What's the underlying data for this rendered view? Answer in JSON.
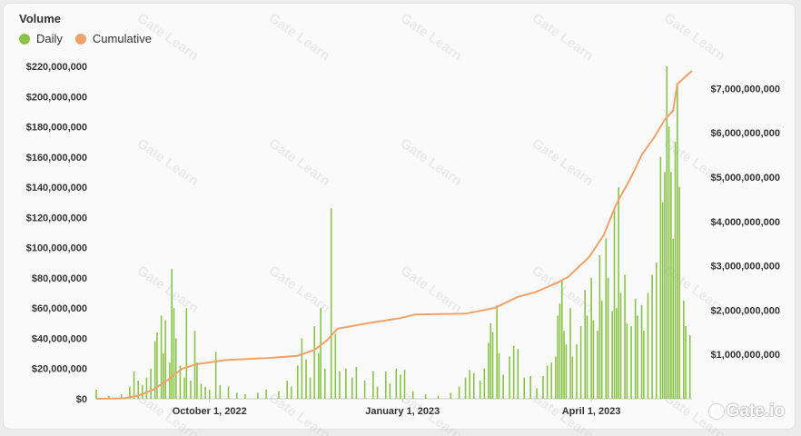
{
  "chart_data": {
    "type": "bar+line",
    "title": "Volume",
    "legend_position": "top-left",
    "grid": "none",
    "x_range": [
      "2022-08-08",
      "2023-05-19"
    ],
    "x_ticks": [
      "October 1, 2022",
      "January 1, 2023",
      "April 1, 2023"
    ],
    "left_axis": {
      "ylim": [
        0,
        220000000
      ],
      "ticks": [
        "$0",
        "$20,000,000",
        "$40,000,000",
        "$60,000,000",
        "$80,000,000",
        "$100,000,000",
        "$120,000,000",
        "$140,000,000",
        "$160,000,000",
        "$180,000,000",
        "$200,000,000",
        "$220,000,000"
      ]
    },
    "right_axis": {
      "ylim": [
        0,
        7500000000
      ],
      "ticks": [
        "$1,000,000,000",
        "$2,000,000,000",
        "$3,000,000,000",
        "$4,000,000,000",
        "$5,000,000,000",
        "$6,000,000,000",
        "$7,000,000,000"
      ]
    },
    "series": [
      {
        "name": "Daily",
        "type": "bar",
        "axis": "left",
        "color": "#8bc34a",
        "points": [
          [
            "2022-08-08",
            6000000
          ],
          [
            "2022-08-14",
            2000000
          ],
          [
            "2022-08-20",
            3000000
          ],
          [
            "2022-08-24",
            8000000
          ],
          [
            "2022-08-26",
            18000000
          ],
          [
            "2022-08-28",
            12000000
          ],
          [
            "2022-08-30",
            9000000
          ],
          [
            "2022-09-01",
            14000000
          ],
          [
            "2022-09-03",
            20000000
          ],
          [
            "2022-09-05",
            38000000
          ],
          [
            "2022-09-06",
            44000000
          ],
          [
            "2022-09-08",
            55000000
          ],
          [
            "2022-09-09",
            30000000
          ],
          [
            "2022-09-10",
            52000000
          ],
          [
            "2022-09-12",
            24000000
          ],
          [
            "2022-09-13",
            86000000
          ],
          [
            "2022-09-14",
            60000000
          ],
          [
            "2022-09-15",
            40000000
          ],
          [
            "2022-09-17",
            22000000
          ],
          [
            "2022-09-19",
            14000000
          ],
          [
            "2022-09-20",
            60000000
          ],
          [
            "2022-09-22",
            12000000
          ],
          [
            "2022-09-24",
            45000000
          ],
          [
            "2022-09-25",
            24000000
          ],
          [
            "2022-09-27",
            10000000
          ],
          [
            "2022-09-29",
            8000000
          ],
          [
            "2022-10-01",
            6000000
          ],
          [
            "2022-10-04",
            31000000
          ],
          [
            "2022-10-06",
            9000000
          ],
          [
            "2022-10-10",
            8000000
          ],
          [
            "2022-10-14",
            4000000
          ],
          [
            "2022-10-18",
            3000000
          ],
          [
            "2022-10-24",
            4000000
          ],
          [
            "2022-10-28",
            6000000
          ],
          [
            "2022-11-03",
            5000000
          ],
          [
            "2022-11-07",
            12000000
          ],
          [
            "2022-11-09",
            8000000
          ],
          [
            "2022-11-12",
            22000000
          ],
          [
            "2022-11-14",
            40000000
          ],
          [
            "2022-11-16",
            26000000
          ],
          [
            "2022-11-18",
            14000000
          ],
          [
            "2022-11-20",
            48000000
          ],
          [
            "2022-11-22",
            30000000
          ],
          [
            "2022-11-23",
            60000000
          ],
          [
            "2022-11-25",
            20000000
          ],
          [
            "2022-11-28",
            126000000
          ],
          [
            "2022-11-30",
            43000000
          ],
          [
            "2022-12-02",
            18000000
          ],
          [
            "2022-12-05",
            20000000
          ],
          [
            "2022-12-08",
            14000000
          ],
          [
            "2022-12-10",
            21000000
          ],
          [
            "2022-12-14",
            12000000
          ],
          [
            "2022-12-18",
            18000000
          ],
          [
            "2022-12-20",
            8000000
          ],
          [
            "2022-12-24",
            18000000
          ],
          [
            "2022-12-26",
            10000000
          ],
          [
            "2022-12-29",
            20000000
          ],
          [
            "2022-12-31",
            16000000
          ],
          [
            "2023-01-02",
            19000000
          ],
          [
            "2023-01-06",
            5000000
          ],
          [
            "2023-01-12",
            3000000
          ],
          [
            "2023-01-18",
            2000000
          ],
          [
            "2023-01-24",
            4000000
          ],
          [
            "2023-01-28",
            8000000
          ],
          [
            "2023-01-31",
            14000000
          ],
          [
            "2023-02-02",
            19000000
          ],
          [
            "2023-02-04",
            17000000
          ],
          [
            "2023-02-07",
            12000000
          ],
          [
            "2023-02-09",
            20000000
          ],
          [
            "2023-02-11",
            37000000
          ],
          [
            "2023-02-12",
            50000000
          ],
          [
            "2023-02-13",
            44000000
          ],
          [
            "2023-02-15",
            62000000
          ],
          [
            "2023-02-16",
            30000000
          ],
          [
            "2023-02-18",
            16000000
          ],
          [
            "2023-02-21",
            28000000
          ],
          [
            "2023-02-23",
            35000000
          ],
          [
            "2023-02-25",
            33000000
          ],
          [
            "2023-02-28",
            14000000
          ],
          [
            "2023-03-03",
            15000000
          ],
          [
            "2023-03-06",
            7000000
          ],
          [
            "2023-03-09",
            15000000
          ],
          [
            "2023-03-11",
            22000000
          ],
          [
            "2023-03-13",
            24000000
          ],
          [
            "2023-03-15",
            28000000
          ],
          [
            "2023-03-16",
            55000000
          ],
          [
            "2023-03-17",
            63000000
          ],
          [
            "2023-03-18",
            78000000
          ],
          [
            "2023-03-19",
            45000000
          ],
          [
            "2023-03-20",
            36000000
          ],
          [
            "2023-03-22",
            60000000
          ],
          [
            "2023-03-23",
            28000000
          ],
          [
            "2023-03-25",
            36000000
          ],
          [
            "2023-03-27",
            48000000
          ],
          [
            "2023-03-29",
            72000000
          ],
          [
            "2023-03-30",
            55000000
          ],
          [
            "2023-04-01",
            80000000
          ],
          [
            "2023-04-02",
            52000000
          ],
          [
            "2023-04-04",
            45000000
          ],
          [
            "2023-04-05",
            95000000
          ],
          [
            "2023-04-06",
            65000000
          ],
          [
            "2023-04-08",
            106000000
          ],
          [
            "2023-04-09",
            80000000
          ],
          [
            "2023-04-11",
            58000000
          ],
          [
            "2023-04-12",
            125000000
          ],
          [
            "2023-04-13",
            60000000
          ],
          [
            "2023-04-14",
            140000000
          ],
          [
            "2023-04-15",
            70000000
          ],
          [
            "2023-04-17",
            82000000
          ],
          [
            "2023-04-18",
            50000000
          ],
          [
            "2023-04-20",
            48000000
          ],
          [
            "2023-04-22",
            66000000
          ],
          [
            "2023-04-23",
            55000000
          ],
          [
            "2023-04-25",
            62000000
          ],
          [
            "2023-04-26",
            45000000
          ],
          [
            "2023-04-28",
            70000000
          ],
          [
            "2023-04-30",
            82000000
          ],
          [
            "2023-05-02",
            90000000
          ],
          [
            "2023-05-04",
            160000000
          ],
          [
            "2023-05-05",
            130000000
          ],
          [
            "2023-05-06",
            150000000
          ],
          [
            "2023-05-07",
            220000000
          ],
          [
            "2023-05-08",
            180000000
          ],
          [
            "2023-05-09",
            150000000
          ],
          [
            "2023-05-10",
            106000000
          ],
          [
            "2023-05-11",
            170000000
          ],
          [
            "2023-05-12",
            208000000
          ],
          [
            "2023-05-13",
            140000000
          ],
          [
            "2023-05-15",
            65000000
          ],
          [
            "2023-05-16",
            48000000
          ],
          [
            "2023-05-18",
            42000000
          ]
        ]
      },
      {
        "name": "Cumulative",
        "type": "line",
        "axis": "right",
        "color": "#f0a26c",
        "points": [
          [
            "2022-08-08",
            0
          ],
          [
            "2022-08-21",
            10000000
          ],
          [
            "2022-08-28",
            70000000
          ],
          [
            "2022-09-04",
            200000000
          ],
          [
            "2022-09-11",
            420000000
          ],
          [
            "2022-09-18",
            680000000
          ],
          [
            "2022-09-25",
            780000000
          ],
          [
            "2022-10-01",
            820000000
          ],
          [
            "2022-10-08",
            870000000
          ],
          [
            "2022-10-29",
            920000000
          ],
          [
            "2022-11-12",
            970000000
          ],
          [
            "2022-11-20",
            1100000000
          ],
          [
            "2022-11-26",
            1320000000
          ],
          [
            "2022-12-01",
            1580000000
          ],
          [
            "2022-12-15",
            1700000000
          ],
          [
            "2022-12-31",
            1820000000
          ],
          [
            "2023-01-07",
            1900000000
          ],
          [
            "2023-01-31",
            1920000000
          ],
          [
            "2023-02-14",
            2050000000
          ],
          [
            "2023-02-25",
            2300000000
          ],
          [
            "2023-03-05",
            2400000000
          ],
          [
            "2023-03-15",
            2600000000
          ],
          [
            "2023-03-21",
            2750000000
          ],
          [
            "2023-03-31",
            3200000000
          ],
          [
            "2023-04-07",
            3700000000
          ],
          [
            "2023-04-13",
            4400000000
          ],
          [
            "2023-04-20",
            5000000000
          ],
          [
            "2023-04-25",
            5500000000
          ],
          [
            "2023-05-01",
            5900000000
          ],
          [
            "2023-05-06",
            6300000000
          ],
          [
            "2023-05-10",
            6500000000
          ],
          [
            "2023-05-12",
            7100000000
          ],
          [
            "2023-05-19",
            7400000000
          ]
        ]
      }
    ],
    "watermark": "Gate Learn",
    "logo_text": "Gate.io"
  }
}
